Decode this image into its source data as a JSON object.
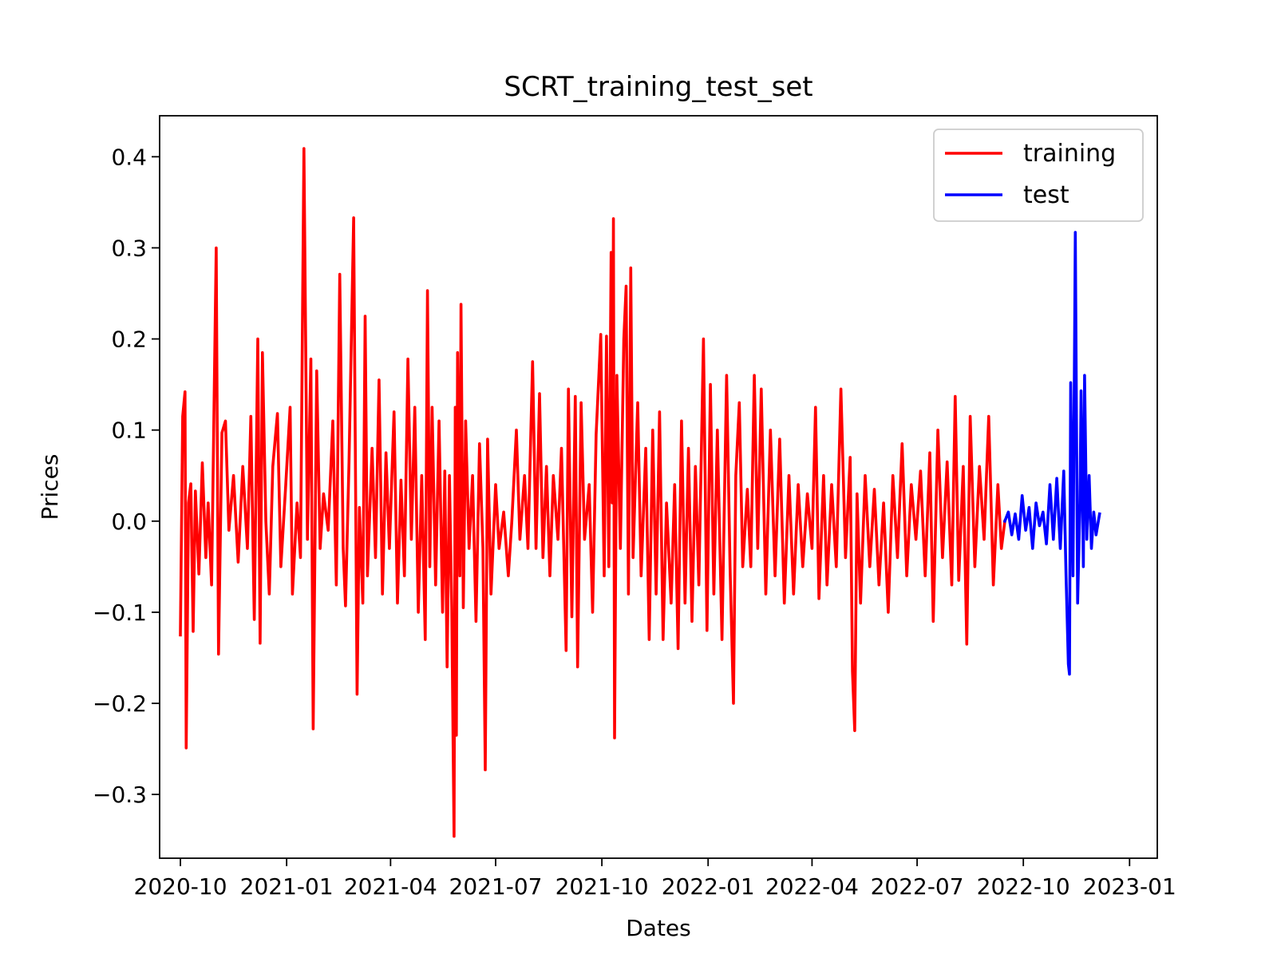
{
  "chart_data": {
    "type": "line",
    "title": "SCRT_training_test_set",
    "xlabel": "Dates",
    "ylabel": "Prices",
    "x_range": [
      "2020-09-13",
      "2023-01-25"
    ],
    "ylim": [
      -0.37,
      0.445
    ],
    "x_ticks": [
      "2020-10",
      "2021-01",
      "2021-04",
      "2021-07",
      "2021-10",
      "2022-01",
      "2022-04",
      "2022-07",
      "2022-10",
      "2023-01"
    ],
    "y_ticks": [
      0.4,
      0.3,
      0.2,
      0.1,
      0.0,
      -0.1,
      -0.2,
      -0.3
    ],
    "y_tick_labels": [
      "0.4",
      "0.3",
      "0.2",
      "0.1",
      "0.0",
      "−0.1",
      "−0.2",
      "−0.3"
    ],
    "grid": false,
    "legend_position": "top-right",
    "series": [
      {
        "name": "training",
        "color": "#ff0000",
        "points": [
          [
            "2020-10-01",
            -0.125
          ],
          [
            "2020-10-03",
            0.115
          ],
          [
            "2020-10-05",
            0.142
          ],
          [
            "2020-10-06",
            -0.249
          ],
          [
            "2020-10-08",
            0.02
          ],
          [
            "2020-10-10",
            0.041
          ],
          [
            "2020-10-12",
            -0.121
          ],
          [
            "2020-10-14",
            0.033
          ],
          [
            "2020-10-17",
            -0.058
          ],
          [
            "2020-10-20",
            0.064
          ],
          [
            "2020-10-23",
            -0.04
          ],
          [
            "2020-10-25",
            0.02
          ],
          [
            "2020-10-28",
            -0.07
          ],
          [
            "2020-11-01",
            0.3
          ],
          [
            "2020-11-03",
            -0.146
          ],
          [
            "2020-11-06",
            0.097
          ],
          [
            "2020-11-09",
            0.11
          ],
          [
            "2020-11-12",
            -0.01
          ],
          [
            "2020-11-16",
            0.05
          ],
          [
            "2020-11-20",
            -0.045
          ],
          [
            "2020-11-24",
            0.06
          ],
          [
            "2020-11-28",
            -0.03
          ],
          [
            "2020-12-01",
            0.115
          ],
          [
            "2020-12-04",
            -0.108
          ],
          [
            "2020-12-07",
            0.2
          ],
          [
            "2020-12-09",
            -0.134
          ],
          [
            "2020-12-11",
            0.185
          ],
          [
            "2020-12-14",
            0.0
          ],
          [
            "2020-12-17",
            -0.08
          ],
          [
            "2020-12-20",
            0.06
          ],
          [
            "2020-12-24",
            0.118
          ],
          [
            "2020-12-27",
            -0.05
          ],
          [
            "2020-12-31",
            0.035
          ],
          [
            "2021-01-04",
            0.125
          ],
          [
            "2021-01-06",
            -0.08
          ],
          [
            "2021-01-10",
            0.02
          ],
          [
            "2021-01-13",
            -0.04
          ],
          [
            "2021-01-16",
            0.409
          ],
          [
            "2021-01-19",
            -0.02
          ],
          [
            "2021-01-22",
            0.178
          ],
          [
            "2021-01-24",
            -0.228
          ],
          [
            "2021-01-27",
            0.165
          ],
          [
            "2021-01-30",
            -0.03
          ],
          [
            "2021-02-02",
            0.03
          ],
          [
            "2021-02-06",
            -0.01
          ],
          [
            "2021-02-10",
            0.11
          ],
          [
            "2021-02-13",
            -0.07
          ],
          [
            "2021-02-16",
            0.271
          ],
          [
            "2021-02-19",
            -0.03
          ],
          [
            "2021-02-21",
            -0.093
          ],
          [
            "2021-02-24",
            0.065
          ],
          [
            "2021-02-28",
            0.333
          ],
          [
            "2021-03-03",
            -0.19
          ],
          [
            "2021-03-05",
            0.015
          ],
          [
            "2021-03-08",
            -0.09
          ],
          [
            "2021-03-10",
            0.225
          ],
          [
            "2021-03-12",
            -0.06
          ],
          [
            "2021-03-16",
            0.08
          ],
          [
            "2021-03-19",
            -0.04
          ],
          [
            "2021-03-22",
            0.155
          ],
          [
            "2021-03-25",
            -0.08
          ],
          [
            "2021-03-28",
            0.075
          ],
          [
            "2021-03-31",
            -0.03
          ],
          [
            "2021-04-04",
            0.12
          ],
          [
            "2021-04-07",
            -0.09
          ],
          [
            "2021-04-10",
            0.045
          ],
          [
            "2021-04-13",
            -0.06
          ],
          [
            "2021-04-16",
            0.178
          ],
          [
            "2021-04-19",
            -0.02
          ],
          [
            "2021-04-22",
            0.125
          ],
          [
            "2021-04-25",
            -0.1
          ],
          [
            "2021-04-28",
            0.05
          ],
          [
            "2021-05-01",
            -0.13
          ],
          [
            "2021-05-03",
            0.253
          ],
          [
            "2021-05-05",
            -0.05
          ],
          [
            "2021-05-07",
            0.125
          ],
          [
            "2021-05-10",
            -0.07
          ],
          [
            "2021-05-13",
            0.11
          ],
          [
            "2021-05-16",
            -0.1
          ],
          [
            "2021-05-18",
            0.055
          ],
          [
            "2021-05-20",
            -0.16
          ],
          [
            "2021-05-22",
            0.05
          ],
          [
            "2021-05-24",
            -0.095
          ],
          [
            "2021-05-26",
            -0.346
          ],
          [
            "2021-05-27",
            0.125
          ],
          [
            "2021-05-28",
            -0.235
          ],
          [
            "2021-05-29",
            0.185
          ],
          [
            "2021-05-31",
            -0.06
          ],
          [
            "2021-06-01",
            0.238
          ],
          [
            "2021-06-03",
            -0.095
          ],
          [
            "2021-06-05",
            0.11
          ],
          [
            "2021-06-08",
            -0.03
          ],
          [
            "2021-06-11",
            0.05
          ],
          [
            "2021-06-14",
            -0.11
          ],
          [
            "2021-06-17",
            0.085
          ],
          [
            "2021-06-20",
            -0.03
          ],
          [
            "2021-06-22",
            -0.273
          ],
          [
            "2021-06-24",
            0.09
          ],
          [
            "2021-06-27",
            -0.08
          ],
          [
            "2021-07-01",
            0.04
          ],
          [
            "2021-07-04",
            -0.03
          ],
          [
            "2021-07-08",
            0.01
          ],
          [
            "2021-07-12",
            -0.06
          ],
          [
            "2021-07-15",
            0.0
          ],
          [
            "2021-07-19",
            0.1
          ],
          [
            "2021-07-22",
            -0.02
          ],
          [
            "2021-07-26",
            0.05
          ],
          [
            "2021-07-29",
            -0.03
          ],
          [
            "2021-08-02",
            0.175
          ],
          [
            "2021-08-05",
            -0.03
          ],
          [
            "2021-08-08",
            0.14
          ],
          [
            "2021-08-11",
            -0.04
          ],
          [
            "2021-08-14",
            0.06
          ],
          [
            "2021-08-17",
            -0.06
          ],
          [
            "2021-08-20",
            0.05
          ],
          [
            "2021-08-24",
            -0.02
          ],
          [
            "2021-08-27",
            0.08
          ],
          [
            "2021-08-31",
            -0.142
          ],
          [
            "2021-09-02",
            0.145
          ],
          [
            "2021-09-05",
            -0.105
          ],
          [
            "2021-09-08",
            0.137
          ],
          [
            "2021-09-10",
            -0.16
          ],
          [
            "2021-09-13",
            0.13
          ],
          [
            "2021-09-16",
            -0.02
          ],
          [
            "2021-09-20",
            0.04
          ],
          [
            "2021-09-23",
            -0.1
          ],
          [
            "2021-09-26",
            0.095
          ],
          [
            "2021-09-30",
            0.205
          ],
          [
            "2021-10-03",
            -0.06
          ],
          [
            "2021-10-05",
            0.203
          ],
          [
            "2021-10-07",
            -0.05
          ],
          [
            "2021-10-09",
            0.295
          ],
          [
            "2021-10-10",
            0.02
          ],
          [
            "2021-10-11",
            0.332
          ],
          [
            "2021-10-12",
            -0.238
          ],
          [
            "2021-10-14",
            0.16
          ],
          [
            "2021-10-17",
            -0.03
          ],
          [
            "2021-10-20",
            0.2
          ],
          [
            "2021-10-22",
            0.258
          ],
          [
            "2021-10-24",
            -0.08
          ],
          [
            "2021-10-26",
            0.278
          ],
          [
            "2021-10-28",
            -0.04
          ],
          [
            "2021-11-01",
            0.13
          ],
          [
            "2021-11-04",
            -0.06
          ],
          [
            "2021-11-08",
            0.08
          ],
          [
            "2021-11-11",
            -0.13
          ],
          [
            "2021-11-14",
            0.1
          ],
          [
            "2021-11-17",
            -0.08
          ],
          [
            "2021-11-20",
            0.12
          ],
          [
            "2021-11-23",
            -0.13
          ],
          [
            "2021-11-26",
            0.02
          ],
          [
            "2021-11-30",
            -0.09
          ],
          [
            "2021-12-03",
            0.04
          ],
          [
            "2021-12-06",
            -0.14
          ],
          [
            "2021-12-09",
            0.11
          ],
          [
            "2021-12-12",
            -0.09
          ],
          [
            "2021-12-15",
            0.08
          ],
          [
            "2021-12-18",
            -0.11
          ],
          [
            "2021-12-21",
            0.06
          ],
          [
            "2021-12-24",
            -0.07
          ],
          [
            "2021-12-28",
            0.2
          ],
          [
            "2021-12-31",
            -0.12
          ],
          [
            "2022-01-03",
            0.15
          ],
          [
            "2022-01-06",
            -0.08
          ],
          [
            "2022-01-09",
            0.1
          ],
          [
            "2022-01-13",
            -0.13
          ],
          [
            "2022-01-17",
            0.16
          ],
          [
            "2022-01-20",
            -0.05
          ],
          [
            "2022-01-23",
            -0.2
          ],
          [
            "2022-01-25",
            0.05
          ],
          [
            "2022-01-28",
            0.13
          ],
          [
            "2022-01-31",
            -0.05
          ],
          [
            "2022-02-04",
            0.035
          ],
          [
            "2022-02-07",
            -0.05
          ],
          [
            "2022-02-10",
            0.16
          ],
          [
            "2022-02-13",
            -0.03
          ],
          [
            "2022-02-16",
            0.145
          ],
          [
            "2022-02-20",
            -0.08
          ],
          [
            "2022-02-24",
            0.1
          ],
          [
            "2022-02-28",
            -0.06
          ],
          [
            "2022-03-04",
            0.09
          ],
          [
            "2022-03-08",
            -0.09
          ],
          [
            "2022-03-12",
            0.05
          ],
          [
            "2022-03-16",
            -0.08
          ],
          [
            "2022-03-20",
            0.04
          ],
          [
            "2022-03-24",
            -0.05
          ],
          [
            "2022-03-28",
            0.03
          ],
          [
            "2022-04-01",
            -0.03
          ],
          [
            "2022-04-04",
            0.125
          ],
          [
            "2022-04-07",
            -0.085
          ],
          [
            "2022-04-11",
            0.05
          ],
          [
            "2022-04-14",
            -0.07
          ],
          [
            "2022-04-18",
            0.04
          ],
          [
            "2022-04-22",
            -0.05
          ],
          [
            "2022-04-26",
            0.145
          ],
          [
            "2022-04-30",
            -0.04
          ],
          [
            "2022-05-04",
            0.07
          ],
          [
            "2022-05-06",
            -0.165
          ],
          [
            "2022-05-08",
            -0.23
          ],
          [
            "2022-05-10",
            0.03
          ],
          [
            "2022-05-13",
            -0.09
          ],
          [
            "2022-05-17",
            0.05
          ],
          [
            "2022-05-21",
            -0.05
          ],
          [
            "2022-05-25",
            0.035
          ],
          [
            "2022-05-29",
            -0.07
          ],
          [
            "2022-06-02",
            0.02
          ],
          [
            "2022-06-06",
            -0.1
          ],
          [
            "2022-06-10",
            0.05
          ],
          [
            "2022-06-14",
            -0.04
          ],
          [
            "2022-06-18",
            0.085
          ],
          [
            "2022-06-22",
            -0.06
          ],
          [
            "2022-06-26",
            0.04
          ],
          [
            "2022-06-30",
            -0.02
          ],
          [
            "2022-07-04",
            0.055
          ],
          [
            "2022-07-08",
            -0.06
          ],
          [
            "2022-07-12",
            0.075
          ],
          [
            "2022-07-15",
            -0.11
          ],
          [
            "2022-07-19",
            0.1
          ],
          [
            "2022-07-23",
            -0.04
          ],
          [
            "2022-07-27",
            0.065
          ],
          [
            "2022-07-31",
            -0.07
          ],
          [
            "2022-08-03",
            0.137
          ],
          [
            "2022-08-06",
            -0.065
          ],
          [
            "2022-08-10",
            0.06
          ],
          [
            "2022-08-13",
            -0.135
          ],
          [
            "2022-08-16",
            0.115
          ],
          [
            "2022-08-20",
            -0.05
          ],
          [
            "2022-08-24",
            0.06
          ],
          [
            "2022-08-28",
            -0.02
          ],
          [
            "2022-09-01",
            0.115
          ],
          [
            "2022-09-05",
            -0.07
          ],
          [
            "2022-09-09",
            0.04
          ],
          [
            "2022-09-12",
            -0.03
          ],
          [
            "2022-09-15",
            0.0
          ]
        ]
      },
      {
        "name": "test",
        "color": "#0000ff",
        "points": [
          [
            "2022-09-15",
            0.0
          ],
          [
            "2022-09-18",
            0.01
          ],
          [
            "2022-09-21",
            -0.015
          ],
          [
            "2022-09-24",
            0.008
          ],
          [
            "2022-09-27",
            -0.02
          ],
          [
            "2022-09-30",
            0.028
          ],
          [
            "2022-10-03",
            -0.01
          ],
          [
            "2022-10-06",
            0.015
          ],
          [
            "2022-10-09",
            -0.03
          ],
          [
            "2022-10-12",
            0.02
          ],
          [
            "2022-10-15",
            -0.005
          ],
          [
            "2022-10-18",
            0.01
          ],
          [
            "2022-10-21",
            -0.025
          ],
          [
            "2022-10-24",
            0.04
          ],
          [
            "2022-10-27",
            -0.02
          ],
          [
            "2022-10-30",
            0.047
          ],
          [
            "2022-11-02",
            -0.03
          ],
          [
            "2022-11-05",
            0.055
          ],
          [
            "2022-11-07",
            -0.06
          ],
          [
            "2022-11-09",
            -0.157
          ],
          [
            "2022-11-10",
            -0.168
          ],
          [
            "2022-11-11",
            0.152
          ],
          [
            "2022-11-13",
            -0.06
          ],
          [
            "2022-11-15",
            0.317
          ],
          [
            "2022-11-17",
            -0.09
          ],
          [
            "2022-11-19",
            0.02
          ],
          [
            "2022-11-20",
            0.143
          ],
          [
            "2022-11-22",
            -0.05
          ],
          [
            "2022-11-23",
            0.16
          ],
          [
            "2022-11-25",
            -0.02
          ],
          [
            "2022-11-27",
            0.05
          ],
          [
            "2022-11-29",
            -0.03
          ],
          [
            "2022-12-01",
            0.01
          ],
          [
            "2022-12-03",
            -0.015
          ],
          [
            "2022-12-06",
            0.008
          ]
        ]
      }
    ]
  }
}
